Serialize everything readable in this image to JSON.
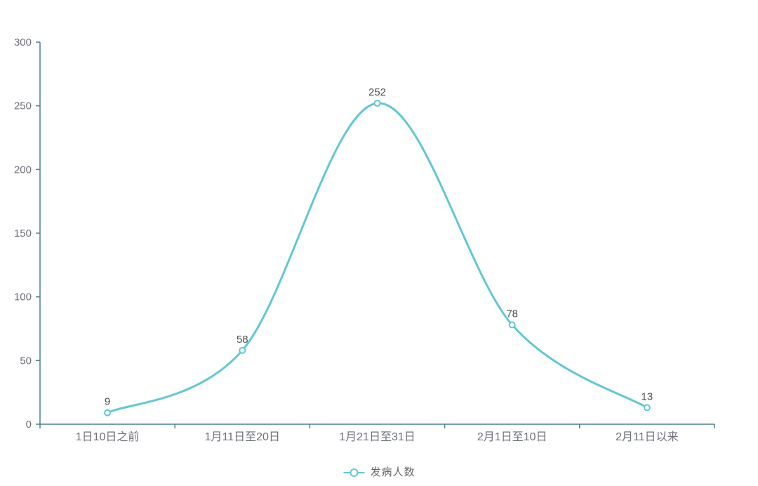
{
  "chart_data": {
    "type": "line",
    "title": "",
    "categories": [
      "1日10日之前",
      "1月11日至20日",
      "1月21日至31日",
      "2月1日至10日",
      "2月11日以来"
    ],
    "series": [
      {
        "name": "发病人数",
        "values": [
          9,
          58,
          252,
          78,
          13
        ]
      }
    ],
    "xlabel": "",
    "ylabel": "",
    "ylim": [
      0,
      300
    ],
    "y_ticks": [
      0,
      50,
      100,
      150,
      200,
      250,
      300
    ],
    "smooth": true,
    "show_data_labels": true,
    "grid": false,
    "legend_position": "bottom-center",
    "colors": {
      "line": "#5fc9d4",
      "marker_fill": "#ffffff",
      "axis": "#4a8090",
      "tick_label": "#6e7079",
      "data_label": "#4d4d4d",
      "legend_text": "#666666",
      "background": "#ffffff"
    }
  }
}
